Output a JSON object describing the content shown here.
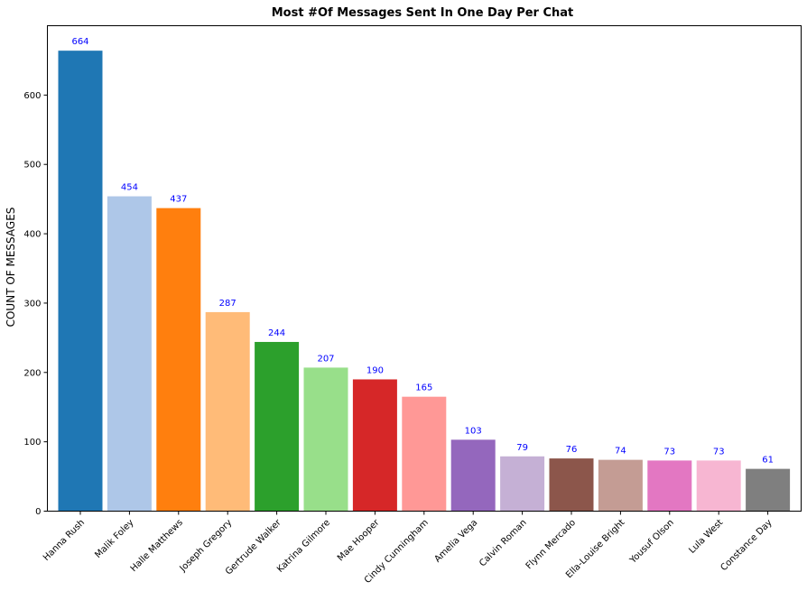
{
  "chart_data": {
    "type": "bar",
    "title": "Most #Of Messages Sent In One Day Per Chat",
    "xlabel": "",
    "ylabel": "COUNT OF MESSAGES",
    "ylim": [
      0,
      700
    ],
    "yticks": [
      0,
      100,
      200,
      300,
      400,
      500,
      600
    ],
    "grid": false,
    "categories": [
      "Hanna Rush",
      "Malik Foley",
      "Halle Matthews",
      "Joseph Gregory",
      "Gertrude Walker",
      "Katrina Gilmore",
      "Mae Hooper",
      "Cindy Cunningham",
      "Amelia Vega",
      "Calvin Roman",
      "Flynn Mercado",
      "Ella-Louise Bright",
      "Yousuf Olson",
      "Lula West",
      "Constance Day"
    ],
    "values": [
      664,
      454,
      437,
      287,
      244,
      207,
      190,
      165,
      103,
      79,
      76,
      74,
      73,
      73,
      61
    ],
    "colors": [
      "#1f77b4",
      "#aec7e8",
      "#ff7f0e",
      "#ffbb78",
      "#2ca02c",
      "#98df8a",
      "#d62728",
      "#ff9896",
      "#9467bd",
      "#c5b0d5",
      "#8c564b",
      "#c49c94",
      "#e377c2",
      "#f7b6d2",
      "#7f7f7f"
    ],
    "data_label_color": "#0000ff"
  }
}
